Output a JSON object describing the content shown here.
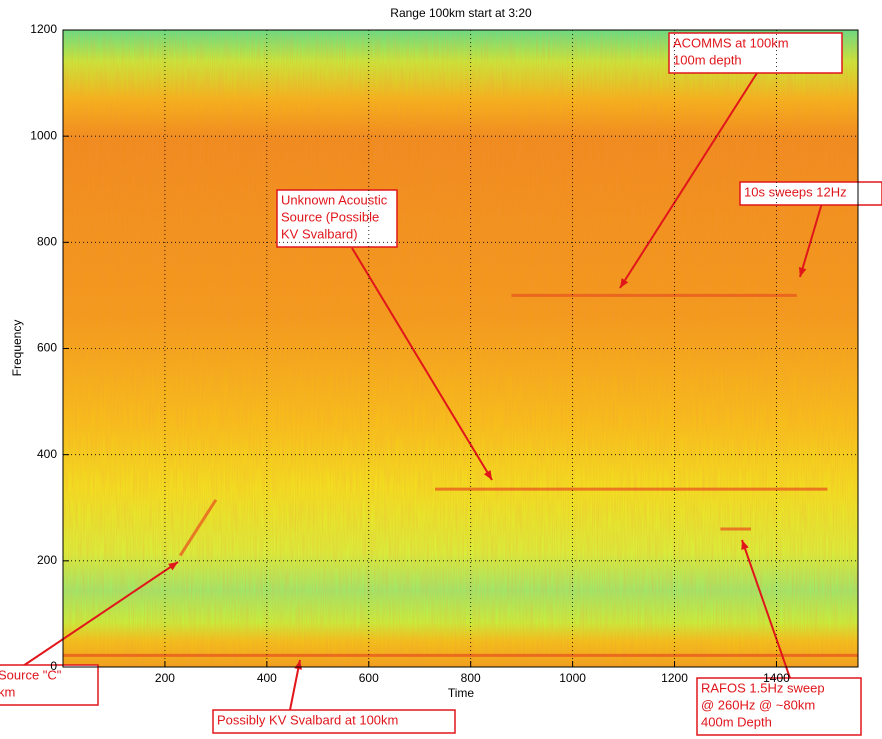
{
  "chart_data": {
    "type": "spectrogram",
    "title": "Range 100km start at 3:20",
    "x_label": "Time",
    "y_label": "Frequency",
    "xlim": [
      0,
      1560
    ],
    "ylim": [
      0,
      1200
    ],
    "xticks": [
      200,
      400,
      600,
      800,
      1000,
      1200,
      1400
    ],
    "yticks": [
      0,
      200,
      400,
      600,
      800,
      1000,
      1200
    ],
    "grid": true,
    "color": "#e8551f",
    "series": [
      {
        "x": [
          880,
          1440
        ],
        "y": [
          700,
          700
        ]
      },
      {
        "x": [
          730,
          1500
        ],
        "y": [
          335,
          335
        ]
      },
      {
        "x": [
          1290,
          1350
        ],
        "y": [
          260,
          260
        ]
      },
      {
        "x": [
          0,
          1560
        ],
        "y": [
          22,
          22
        ]
      },
      {
        "x": [
          230,
          300
        ],
        "y": [
          210,
          315
        ]
      }
    ],
    "annotations": [
      {
        "lines": [
          "ACOMMS at 100km",
          "100m depth"
        ]
      },
      {
        "lines": [
          "10s sweeps 12Hz"
        ]
      },
      {
        "lines": [
          "Unknown Acoustic",
          "Source (Possible",
          "KV Svalbard)"
        ]
      },
      {
        "lines": [
          "Source \"C\"",
          "km"
        ]
      },
      {
        "lines": [
          "Possibly KV Svalbard at 100km"
        ]
      },
      {
        "lines": [
          "RAFOS 1.5Hz sweep",
          "@ 260Hz @ ~80km",
          "400m Depth"
        ]
      }
    ]
  }
}
